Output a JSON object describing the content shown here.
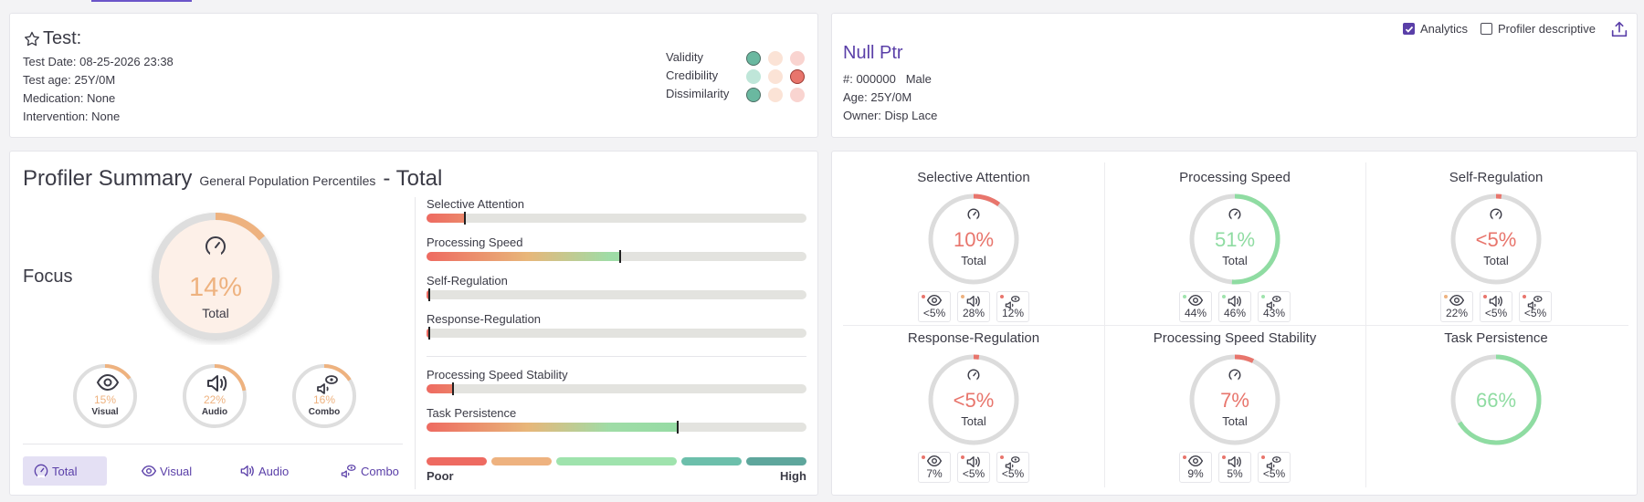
{
  "test": {
    "title": "Test:",
    "date": "Test Date: 08-25-2026 23:38",
    "age": "Test age: 25Y/0M",
    "medication": "Medication: None",
    "intervention": "Intervention: None",
    "indicators": [
      {
        "label": "Validity",
        "dots": [
          "#6ab8a0",
          "#fbe3d6",
          "#f9d4d0"
        ],
        "active": 0
      },
      {
        "label": "Credibility",
        "dots": [
          "#bfe6d9",
          "#fbe3d6",
          "#e8756c"
        ],
        "active": 2
      },
      {
        "label": "Dissimilarity",
        "dots": [
          "#6ab8a0",
          "#fbe3d6",
          "#f9d4d0"
        ],
        "active": 0
      }
    ]
  },
  "patient": {
    "name": "Null Ptr",
    "id": "#: 000000",
    "sex": "Male",
    "age": "Age: 25Y/0M",
    "owner": "Owner: Disp Lace",
    "analytics_label": "Analytics",
    "profiler_label": "Profiler descriptive",
    "analytics_checked": true,
    "profiler_checked": false
  },
  "summary": {
    "title": "Profiler Summary",
    "subtitle": "General Population Percentiles",
    "suffix": "- Total",
    "focus_label": "Focus",
    "focus": {
      "value": "14%",
      "label": "Total",
      "fraction": 0.14
    },
    "minis": [
      {
        "value": "15%",
        "label": "Visual",
        "fraction": 0.15,
        "icon": "eye-icon"
      },
      {
        "value": "22%",
        "label": "Audio",
        "fraction": 0.22,
        "icon": "speaker-icon"
      },
      {
        "value": "16%",
        "label": "Combo",
        "fraction": 0.16,
        "icon": "combo-icon"
      }
    ],
    "tabs": [
      {
        "label": "Total",
        "icon": "gauge-icon",
        "active": true
      },
      {
        "label": "Visual",
        "icon": "eye-icon",
        "active": false
      },
      {
        "label": "Audio",
        "icon": "speaker-icon",
        "active": false
      },
      {
        "label": "Combo",
        "icon": "combo-icon",
        "active": false
      }
    ],
    "bars": [
      {
        "label": "Selective Attention",
        "fraction": 0.1
      },
      {
        "label": "Processing Speed",
        "fraction": 0.51
      },
      {
        "label": "Self-Regulation",
        "fraction": 0.0
      },
      {
        "label": "Response-Regulation",
        "fraction": 0.0
      },
      {
        "label": "Processing Speed Stability",
        "fraction": 0.07
      },
      {
        "label": "Task Persistence",
        "fraction": 0.66
      }
    ],
    "legend": {
      "poor": "Poor",
      "high": "High",
      "colors": [
        "#ee6a61",
        "#eeb27f",
        "#9fe3ad",
        "#6cbfab",
        "#5ea69c"
      ]
    }
  },
  "domains": [
    {
      "title": "Selective Attention",
      "value": "10%",
      "label": "Total",
      "fraction": 0.1,
      "color": "#e8756c",
      "subs": [
        {
          "v": "<5%",
          "icon": "eye-icon",
          "dot": "#e8756c"
        },
        {
          "v": "28%",
          "icon": "speaker-icon",
          "dot": "#eeb27f"
        },
        {
          "v": "12%",
          "icon": "combo-icon",
          "dot": "#e8756c"
        }
      ]
    },
    {
      "title": "Processing Speed",
      "value": "51%",
      "label": "Total",
      "fraction": 0.51,
      "color": "#8fdca2",
      "subs": [
        {
          "v": "44%",
          "icon": "eye-icon",
          "dot": "#9fe3ad"
        },
        {
          "v": "46%",
          "icon": "speaker-icon",
          "dot": "#9fe3ad"
        },
        {
          "v": "43%",
          "icon": "combo-icon",
          "dot": "#9fe3ad"
        }
      ]
    },
    {
      "title": "Self-Regulation",
      "value": "<5%",
      "label": "Total",
      "fraction": 0.02,
      "color": "#e8756c",
      "subs": [
        {
          "v": "22%",
          "icon": "eye-icon",
          "dot": "#eeb27f"
        },
        {
          "v": "<5%",
          "icon": "speaker-icon",
          "dot": "#e8756c"
        },
        {
          "v": "<5%",
          "icon": "combo-icon",
          "dot": "#e8756c"
        }
      ]
    },
    {
      "title": "Response-Regulation",
      "value": "<5%",
      "label": "Total",
      "fraction": 0.02,
      "color": "#e8756c",
      "subs": [
        {
          "v": "7%",
          "icon": "eye-icon",
          "dot": "#e8756c"
        },
        {
          "v": "<5%",
          "icon": "speaker-icon",
          "dot": "#e8756c"
        },
        {
          "v": "<5%",
          "icon": "combo-icon",
          "dot": "#e8756c"
        }
      ]
    },
    {
      "title": "Processing Speed Stability",
      "value": "7%",
      "label": "Total",
      "fraction": 0.07,
      "color": "#e8756c",
      "subs": [
        {
          "v": "9%",
          "icon": "eye-icon",
          "dot": "#e8756c"
        },
        {
          "v": "5%",
          "icon": "speaker-icon",
          "dot": "#e8756c"
        },
        {
          "v": "<5%",
          "icon": "combo-icon",
          "dot": "#e8756c"
        }
      ]
    },
    {
      "title": "Task Persistence",
      "value": "66%",
      "label": "",
      "fraction": 0.66,
      "color": "#8fdca2",
      "subs": []
    }
  ]
}
